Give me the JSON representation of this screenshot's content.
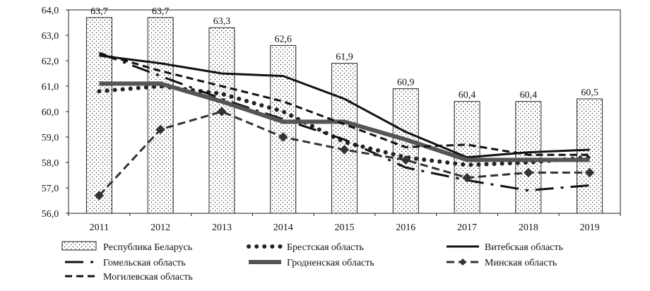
{
  "chart_data": {
    "type": "bar",
    "title": "",
    "xlabel": "",
    "ylabel": "",
    "categories": [
      "2011",
      "2012",
      "2013",
      "2014",
      "2015",
      "2016",
      "2017",
      "2018",
      "2019"
    ],
    "ylim": [
      56.0,
      64.0
    ],
    "yticks": [
      "56,0",
      "57,0",
      "58,0",
      "59,0",
      "60,0",
      "61,0",
      "62,0",
      "63,0",
      "64,0"
    ],
    "bar_series": {
      "name": "Республика Беларусь",
      "values": [
        63.7,
        63.7,
        63.3,
        62.6,
        61.9,
        60.9,
        60.4,
        60.4,
        60.5
      ],
      "labels": [
        "63,7",
        "63,7",
        "63,3",
        "62,6",
        "61,9",
        "60,9",
        "60,4",
        "60,4",
        "60,5"
      ]
    },
    "line_series": [
      {
        "name": "Брестская область",
        "style": "dotted",
        "values": [
          60.8,
          61.0,
          60.7,
          60.0,
          58.8,
          58.2,
          57.9,
          58.0,
          58.2
        ]
      },
      {
        "name": "Витебская область",
        "style": "solid",
        "values": [
          62.2,
          61.9,
          61.5,
          61.4,
          60.5,
          59.2,
          58.2,
          58.4,
          58.5
        ]
      },
      {
        "name": "Гомельская область",
        "style": "long-dash",
        "values": [
          62.3,
          61.4,
          60.5,
          59.7,
          58.9,
          57.8,
          57.3,
          56.9,
          57.1
        ]
      },
      {
        "name": "Гродненская область",
        "style": "thick",
        "values": [
          61.1,
          61.1,
          60.4,
          59.6,
          59.6,
          58.9,
          58.1,
          58.1,
          58.1
        ]
      },
      {
        "name": "Минская область",
        "style": "dash-diamond",
        "values": [
          56.7,
          59.3,
          60.0,
          59.0,
          58.5,
          58.1,
          57.4,
          57.6,
          57.6
        ]
      },
      {
        "name": "Могилевская область",
        "style": "dashed",
        "values": [
          62.3,
          61.6,
          61.0,
          60.4,
          59.5,
          58.6,
          58.7,
          58.3,
          58.3
        ]
      }
    ],
    "legend_position": "bottom"
  }
}
